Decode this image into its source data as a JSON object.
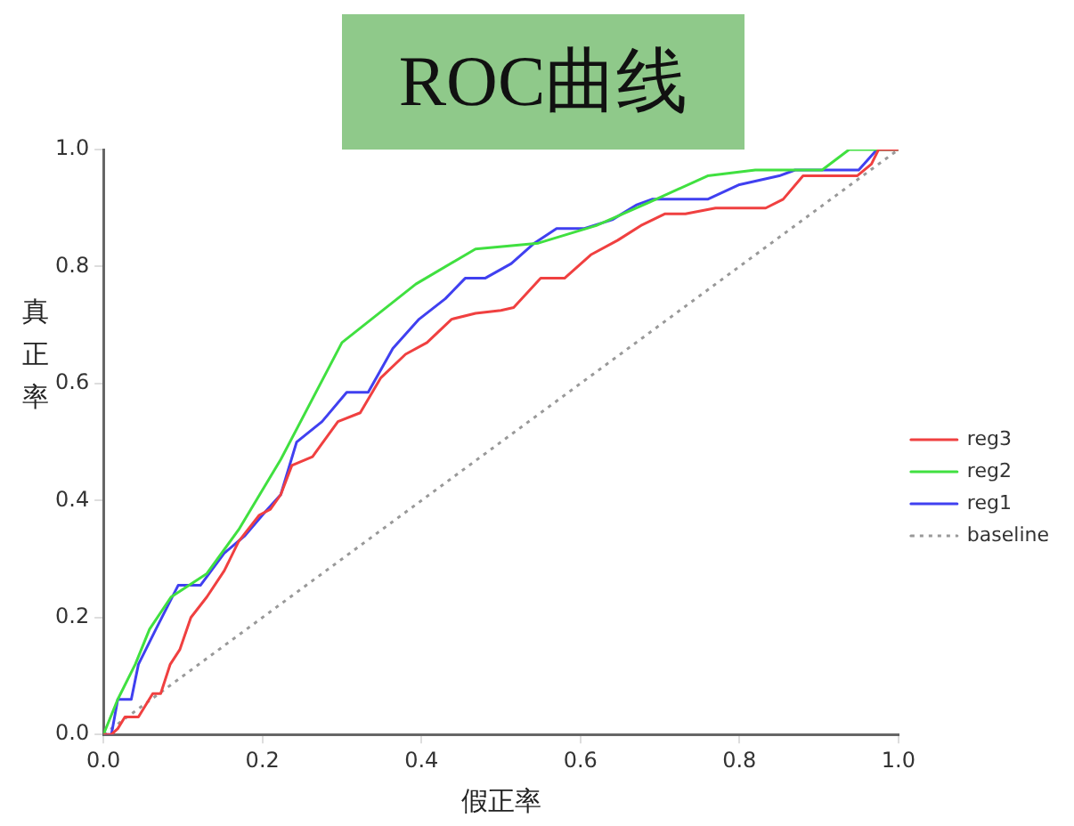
{
  "chart_data": {
    "type": "line",
    "title": "ROC曲线",
    "xlabel": "假正率",
    "ylabel": "真正率",
    "xlim": [
      0,
      1
    ],
    "ylim": [
      0,
      1
    ],
    "xticks": [
      {
        "value": 0,
        "label": "0.0"
      },
      {
        "value": 0.2,
        "label": "0.2"
      },
      {
        "value": 0.4,
        "label": "0.4"
      },
      {
        "value": 0.6,
        "label": "0.6"
      },
      {
        "value": 0.8,
        "label": "0.8"
      },
      {
        "value": 1,
        "label": "1.0"
      }
    ],
    "yticks": [
      {
        "value": 0,
        "label": "0.0"
      },
      {
        "value": 0.2,
        "label": "0.2"
      },
      {
        "value": 0.4,
        "label": "0.4"
      },
      {
        "value": 0.6,
        "label": "0.6"
      },
      {
        "value": 0.8,
        "label": "0.8"
      },
      {
        "value": 1,
        "label": "1.0"
      }
    ],
    "grid": false,
    "legend": "right",
    "marker": "none",
    "series": [
      {
        "name": "reg3",
        "color": "#f04040",
        "line_style": "solid",
        "x": [
          0,
          0.01,
          0.018,
          0.027,
          0.044,
          0.062,
          0.072,
          0.084,
          0.096,
          0.11,
          0.13,
          0.152,
          0.17,
          0.196,
          0.21,
          0.223,
          0.237,
          0.263,
          0.295,
          0.323,
          0.349,
          0.38,
          0.407,
          0.438,
          0.468,
          0.5,
          0.516,
          0.55,
          0.58,
          0.613,
          0.647,
          0.676,
          0.706,
          0.732,
          0.77,
          0.833,
          0.855,
          0.88,
          0.948,
          0.966,
          0.975,
          1
        ],
        "values": [
          0,
          0,
          0.01,
          0.03,
          0.03,
          0.07,
          0.07,
          0.12,
          0.145,
          0.2,
          0.235,
          0.28,
          0.33,
          0.375,
          0.385,
          0.41,
          0.46,
          0.475,
          0.535,
          0.55,
          0.61,
          0.65,
          0.67,
          0.71,
          0.72,
          0.725,
          0.73,
          0.78,
          0.78,
          0.82,
          0.845,
          0.87,
          0.89,
          0.89,
          0.9,
          0.9,
          0.915,
          0.955,
          0.955,
          0.975,
          1,
          1
        ]
      },
      {
        "name": "reg2",
        "color": "#40e040",
        "line_style": "solid",
        "x": [
          0,
          0.018,
          0.04,
          0.058,
          0.085,
          0.13,
          0.17,
          0.223,
          0.3,
          0.393,
          0.468,
          0.547,
          0.62,
          0.687,
          0.76,
          0.82,
          0.904,
          0.938,
          1
        ],
        "values": [
          0,
          0.06,
          0.12,
          0.18,
          0.235,
          0.275,
          0.35,
          0.47,
          0.67,
          0.77,
          0.83,
          0.84,
          0.87,
          0.91,
          0.955,
          0.965,
          0.965,
          1,
          1
        ]
      },
      {
        "name": "reg1",
        "color": "#4040f0",
        "line_style": "solid",
        "x": [
          0,
          0.01,
          0.018,
          0.035,
          0.044,
          0.066,
          0.094,
          0.122,
          0.152,
          0.178,
          0.203,
          0.223,
          0.243,
          0.275,
          0.306,
          0.333,
          0.364,
          0.397,
          0.43,
          0.455,
          0.48,
          0.513,
          0.542,
          0.57,
          0.605,
          0.64,
          0.67,
          0.69,
          0.76,
          0.8,
          0.85,
          0.87,
          0.95,
          0.973,
          1
        ],
        "values": [
          0,
          0,
          0.06,
          0.06,
          0.12,
          0.18,
          0.255,
          0.255,
          0.31,
          0.34,
          0.38,
          0.41,
          0.5,
          0.535,
          0.585,
          0.585,
          0.66,
          0.71,
          0.745,
          0.78,
          0.78,
          0.805,
          0.84,
          0.865,
          0.865,
          0.88,
          0.905,
          0.915,
          0.915,
          0.94,
          0.955,
          0.965,
          0.965,
          1,
          1
        ]
      },
      {
        "name": "baseline",
        "color": "#999999",
        "line_style": "dotted",
        "x": [
          0,
          1
        ],
        "values": [
          0,
          1
        ]
      }
    ]
  }
}
